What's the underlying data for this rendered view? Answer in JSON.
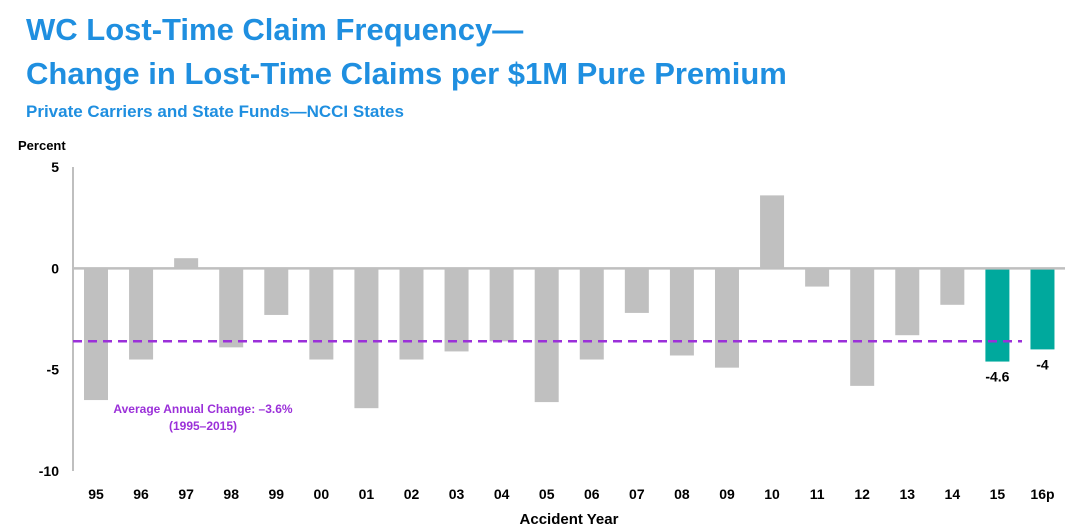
{
  "header": {
    "title_line1": "WC Lost-Time Claim Frequency—",
    "title_line2": "Change in Lost-Time Claims per $1M Pure Premium",
    "subtitle": "Private Carriers and State Funds—NCCI States"
  },
  "colors": {
    "title": "#1f8fe0",
    "bar_default": "#c0c0c0",
    "bar_highlight": "#00a99d",
    "average_line": "#9b30d9",
    "axis": "#bfbfbf"
  },
  "chart_data": {
    "type": "bar",
    "ylabel": "Percent",
    "xlabel": "Accident Year",
    "ylim": [
      -10,
      5
    ],
    "yticks": [
      5,
      0,
      -5,
      -10
    ],
    "grid": false,
    "categories": [
      "95",
      "96",
      "97",
      "98",
      "99",
      "00",
      "01",
      "02",
      "03",
      "04",
      "05",
      "06",
      "07",
      "08",
      "09",
      "10",
      "11",
      "12",
      "13",
      "14",
      "15",
      "16p"
    ],
    "values": [
      -6.5,
      -4.5,
      0.5,
      -3.9,
      -2.3,
      -4.5,
      -6.9,
      -4.5,
      -4.1,
      -3.6,
      -6.6,
      -4.5,
      -2.2,
      -4.3,
      -4.9,
      3.6,
      -0.9,
      -5.8,
      -3.3,
      -1.8,
      -4.6,
      -4
    ],
    "highlighted": [
      "15",
      "16p"
    ],
    "data_labels": [
      {
        "category": "15",
        "text": "-4.6"
      },
      {
        "category": "16p",
        "text": "-4"
      }
    ],
    "average_line": {
      "value": -3.6,
      "label_line1": "Average Annual Change: –3.6%",
      "label_line2": "(1995–2015)"
    }
  }
}
